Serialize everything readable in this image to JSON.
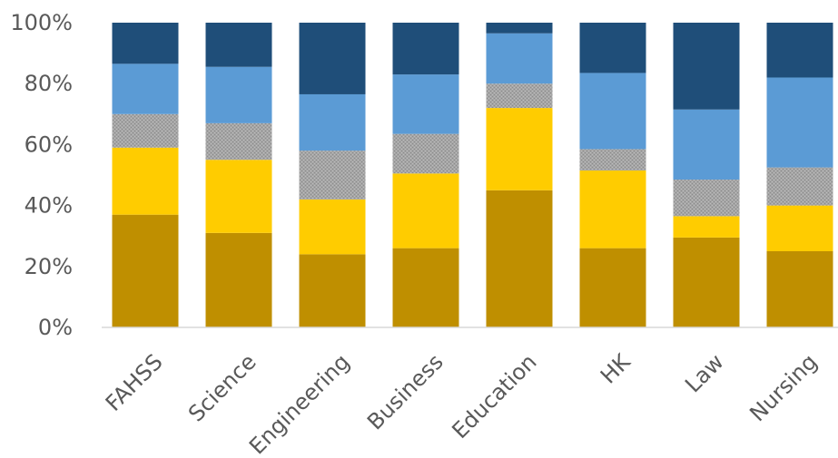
{
  "chart_data": {
    "type": "bar",
    "stacked": true,
    "normalized": true,
    "categories": [
      "FAHSS",
      "Science",
      "Engineering",
      "Business",
      "Education",
      "HK",
      "Law",
      "Nursing"
    ],
    "series": [
      {
        "color": "#BF8F00",
        "values": [
          37,
          31,
          24,
          26,
          45,
          26,
          29.5,
          25
        ]
      },
      {
        "color": "#FFCC00",
        "values": [
          22,
          24,
          18,
          24.5,
          27,
          25.5,
          7,
          15
        ]
      },
      {
        "color": "#A5A5A5",
        "values": [
          11,
          12,
          16,
          13,
          8,
          7,
          12,
          12.5
        ]
      },
      {
        "color": "#5B9BD5",
        "values": [
          16.5,
          18.5,
          18.5,
          19.5,
          16.5,
          25,
          23,
          29.5
        ]
      },
      {
        "color": "#1F4E79",
        "values": [
          13.5,
          14.5,
          23.5,
          17,
          3.5,
          16.5,
          28.5,
          18
        ]
      }
    ],
    "y_ticks": [
      "0%",
      "20%",
      "40%",
      "60%",
      "80%",
      "100%"
    ],
    "ylim": [
      0,
      100
    ],
    "grid": false,
    "legend": "none"
  }
}
